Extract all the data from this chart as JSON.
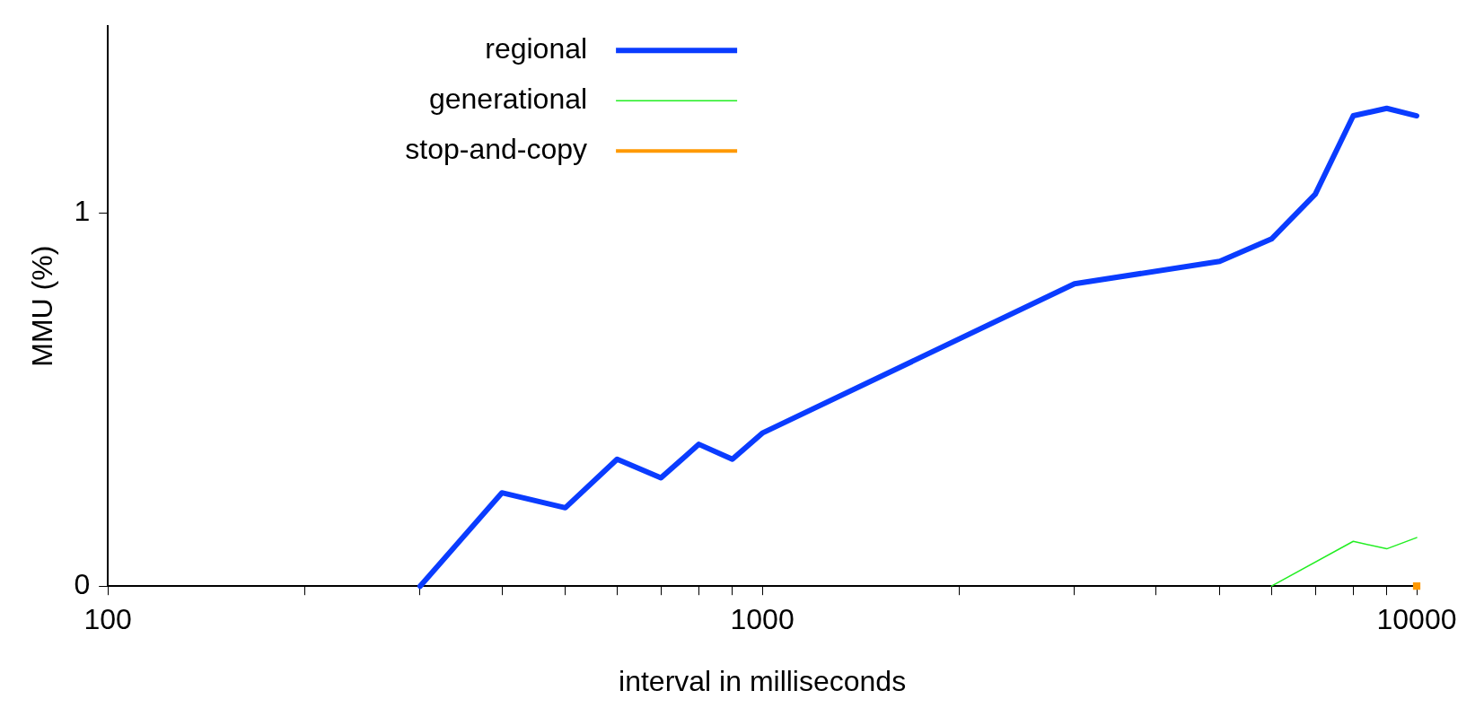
{
  "chart_data": {
    "type": "line",
    "xlabel": "interval in milliseconds",
    "ylabel": "MMU (%)",
    "log": "x",
    "xlim": [
      100,
      10000
    ],
    "ylim": [
      0,
      1.5
    ],
    "xticks": [
      100,
      {
        "value": 200,
        "label": null
      },
      {
        "value": 300,
        "label": null
      },
      {
        "value": 400,
        "label": null
      },
      {
        "value": 500,
        "label": null
      },
      {
        "value": 600,
        "label": null
      },
      {
        "value": 700,
        "label": null
      },
      {
        "value": 800,
        "label": null
      },
      {
        "value": 900,
        "label": null
      },
      1000,
      {
        "value": 2000,
        "label": null
      },
      {
        "value": 3000,
        "label": null
      },
      {
        "value": 4000,
        "label": null
      },
      {
        "value": 5000,
        "label": null
      },
      {
        "value": 6000,
        "label": null
      },
      {
        "value": 7000,
        "label": null
      },
      {
        "value": 8000,
        "label": null
      },
      {
        "value": 9000,
        "label": null
      },
      10000
    ],
    "yticks": [
      0,
      1
    ],
    "grid": false,
    "legend": "top",
    "marker": "none",
    "line_style": "solid",
    "series": [
      {
        "name": "regional",
        "color": "#0a3cff",
        "x": [
          300,
          400,
          500,
          600,
          700,
          800,
          900,
          1000,
          3000,
          5000,
          6000,
          7000,
          8000,
          9000,
          10000
        ],
        "values": [
          0,
          0.25,
          0.21,
          0.34,
          0.29,
          0.38,
          0.34,
          0.41,
          0.81,
          0.87,
          0.93,
          1.05,
          1.26,
          1.28,
          1.26
        ]
      },
      {
        "name": "generational",
        "color": "#22ee22",
        "x": [
          6000,
          8000,
          9000,
          10000
        ],
        "values": [
          0,
          0.12,
          0.1,
          0.13
        ]
      },
      {
        "name": "stop-and-copy",
        "color": "#ff9900",
        "marker": "square",
        "x": [
          10000
        ],
        "values": [
          0
        ]
      }
    ]
  }
}
